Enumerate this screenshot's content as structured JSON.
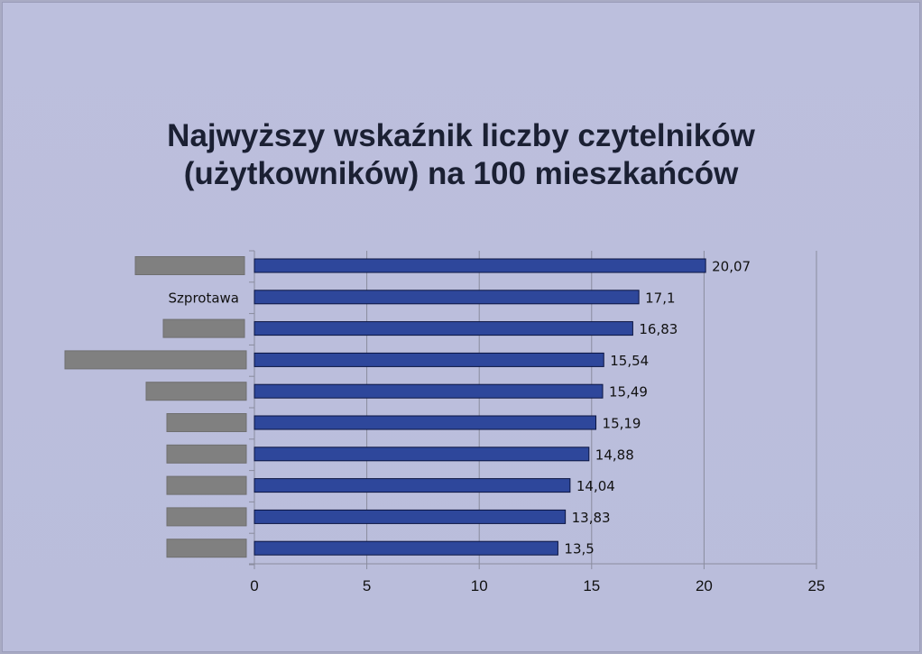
{
  "chart_data": {
    "type": "bar",
    "orientation": "horizontal",
    "title_lines": [
      "Najwyższy wskaźnik liczby czytelników",
      "(użytkowników) na 100 mieszkańców"
    ],
    "categories": [
      "",
      "Szprotawa",
      "",
      "",
      "",
      "",
      "",
      "",
      "",
      ""
    ],
    "redacted_category_labels": [
      true,
      false,
      true,
      true,
      true,
      true,
      true,
      true,
      true,
      true
    ],
    "values": [
      20.07,
      17.1,
      16.83,
      15.54,
      15.49,
      15.19,
      14.88,
      14.04,
      13.83,
      13.5
    ],
    "value_labels": [
      "20,07",
      "17,1",
      "16,83",
      "15,54",
      "15,49",
      "15,19",
      "14,88",
      "14,04",
      "13,83",
      "13,5"
    ],
    "xlim": [
      0,
      25
    ],
    "x_ticks": [
      0,
      5,
      10,
      15,
      20,
      25
    ],
    "x_tick_labels": [
      "0",
      "5",
      "10",
      "15",
      "20",
      "25"
    ],
    "gridlines": "vertical",
    "legend": "none",
    "colors": {
      "bar_fill": "#2e479b",
      "bar_stroke": "#0b1440",
      "grid": "#8a8c9e",
      "redaction": "#808080",
      "text": "#111111",
      "title": "#1b2033"
    }
  }
}
